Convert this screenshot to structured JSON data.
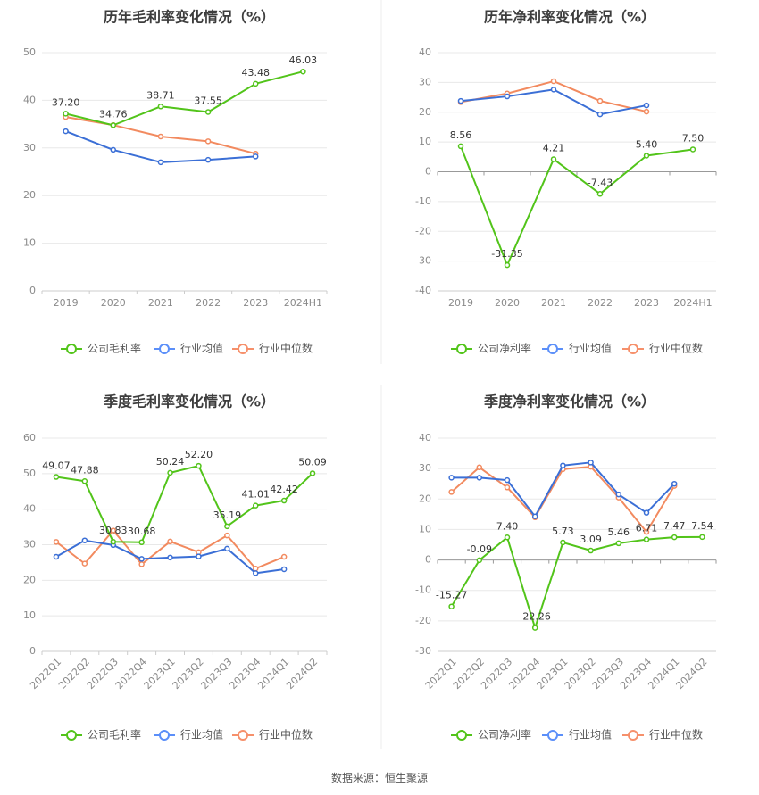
{
  "source": "数据来源：恒生聚源",
  "legend_swatch_colors": [
    "#52c41a",
    "#5b8ff9",
    "#f6906b"
  ],
  "chart_data": [
    {
      "type": "line",
      "title": "历年毛利率变化情况（%）",
      "categories": [
        "2019",
        "2020",
        "2021",
        "2022",
        "2023",
        "2024H1"
      ],
      "ylim": [
        0,
        50
      ],
      "yticks": [
        0,
        10,
        20,
        30,
        40,
        50
      ],
      "rotate_x": false,
      "grid": true,
      "legend_position": "bottom",
      "series": [
        {
          "name": "公司毛利率",
          "color": "#52c41a",
          "labels": true,
          "values": [
            37.2,
            34.76,
            38.71,
            37.55,
            43.48,
            46.03
          ]
        },
        {
          "name": "行业均值",
          "color": "#3b6fd6",
          "labels": false,
          "values": [
            33.5,
            29.6,
            27.0,
            27.5,
            28.2,
            null
          ]
        },
        {
          "name": "行业中位数",
          "color": "#f28a5f",
          "labels": false,
          "values": [
            36.5,
            34.8,
            32.4,
            31.4,
            28.8,
            null
          ]
        }
      ]
    },
    {
      "type": "line",
      "title": "历年净利率变化情况（%）",
      "categories": [
        "2019",
        "2020",
        "2021",
        "2022",
        "2023",
        "2024H1"
      ],
      "ylim": [
        -40,
        40
      ],
      "yticks": [
        -40,
        -30,
        -20,
        -10,
        0,
        10,
        20,
        30,
        40
      ],
      "rotate_x": false,
      "grid": true,
      "legend_position": "bottom",
      "series": [
        {
          "name": "公司净利率",
          "color": "#52c41a",
          "labels": true,
          "values": [
            8.56,
            -31.35,
            4.21,
            -7.43,
            5.4,
            7.5
          ]
        },
        {
          "name": "行业均值",
          "color": "#3b6fd6",
          "labels": false,
          "values": [
            23.8,
            25.3,
            27.6,
            19.3,
            22.3,
            null
          ]
        },
        {
          "name": "行业中位数",
          "color": "#f28a5f",
          "labels": false,
          "values": [
            23.4,
            26.3,
            30.4,
            23.8,
            20.2,
            null
          ]
        }
      ]
    },
    {
      "type": "line",
      "title": "季度毛利率变化情况（%）",
      "categories": [
        "2022Q1",
        "2022Q2",
        "2022Q3",
        "2022Q4",
        "2023Q1",
        "2023Q2",
        "2023Q3",
        "2023Q4",
        "2024Q1",
        "2024Q2"
      ],
      "ylim": [
        0,
        60
      ],
      "yticks": [
        0,
        10,
        20,
        30,
        40,
        50,
        60
      ],
      "rotate_x": true,
      "grid": true,
      "legend_position": "bottom",
      "series": [
        {
          "name": "公司毛利率",
          "color": "#52c41a",
          "labels": true,
          "values": [
            49.07,
            47.88,
            30.83,
            30.68,
            50.24,
            52.2,
            35.19,
            41.01,
            42.42,
            50.09
          ]
        },
        {
          "name": "行业均值",
          "color": "#3b6fd6",
          "labels": false,
          "values": [
            26.6,
            31.2,
            29.9,
            26.0,
            26.4,
            26.7,
            28.9,
            22.0,
            23.1,
            null
          ]
        },
        {
          "name": "行业中位数",
          "color": "#f28a5f",
          "labels": false,
          "values": [
            30.8,
            24.7,
            34.0,
            24.5,
            30.9,
            27.9,
            32.6,
            23.3,
            26.6,
            null
          ]
        }
      ]
    },
    {
      "type": "line",
      "title": "季度净利率变化情况（%）",
      "categories": [
        "2022Q1",
        "2022Q2",
        "2022Q3",
        "2022Q4",
        "2023Q1",
        "2023Q2",
        "2023Q3",
        "2023Q4",
        "2024Q1",
        "2024Q2"
      ],
      "ylim": [
        -30,
        40
      ],
      "yticks": [
        -30,
        -20,
        -10,
        0,
        10,
        20,
        30,
        40
      ],
      "rotate_x": true,
      "grid": true,
      "legend_position": "bottom",
      "series": [
        {
          "name": "公司净利率",
          "color": "#52c41a",
          "labels": true,
          "values": [
            -15.27,
            -0.09,
            7.4,
            -22.26,
            5.73,
            3.09,
            5.46,
            6.71,
            7.47,
            7.54
          ]
        },
        {
          "name": "行业均值",
          "color": "#3b6fd6",
          "labels": false,
          "values": [
            27.0,
            27.0,
            26.2,
            14.3,
            31.0,
            32.0,
            21.5,
            15.5,
            25.0,
            null
          ]
        },
        {
          "name": "行业中位数",
          "color": "#f28a5f",
          "labels": false,
          "values": [
            22.3,
            30.4,
            23.8,
            14.0,
            29.8,
            30.6,
            20.5,
            9.2,
            24.3,
            null
          ]
        }
      ]
    }
  ]
}
